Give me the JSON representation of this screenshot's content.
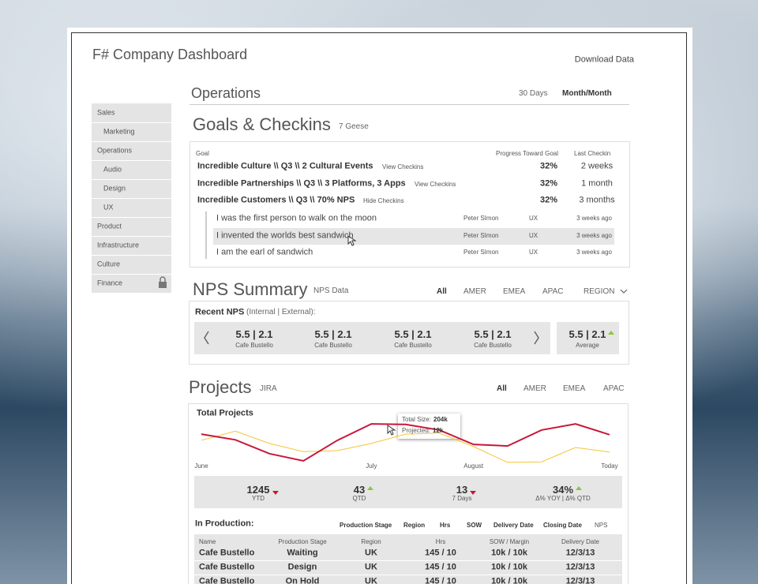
{
  "header": {
    "title": "F# Company Dashboard",
    "download": "Download Data"
  },
  "sidebar": {
    "items": [
      {
        "label": "Sales",
        "sub": false
      },
      {
        "label": "Marketing",
        "sub": true
      },
      {
        "label": "Operations",
        "sub": false
      },
      {
        "label": "Audio",
        "sub": true
      },
      {
        "label": "Design",
        "sub": true
      },
      {
        "label": "UX",
        "sub": true
      },
      {
        "label": "Product",
        "sub": false
      },
      {
        "label": "Infrastructure",
        "sub": false
      },
      {
        "label": "Culture",
        "sub": false
      },
      {
        "label": "Finance",
        "sub": false,
        "locked": true
      }
    ]
  },
  "operations": {
    "title": "Operations",
    "tabs": [
      "30 Days",
      "Month/Month"
    ],
    "active": 1
  },
  "goals": {
    "title": "Goals & Checkins",
    "subtitle": "7 Geese",
    "headers": [
      "Goal",
      "Progress Toward Goal",
      "Last Checkin"
    ],
    "rows": [
      {
        "goal": "Incredible Culture \\\\ Q3 \\\\ 2 Cultural Events",
        "link": "View Checkins",
        "progress": "32%",
        "last": "2 weeks"
      },
      {
        "goal": "Incredible Partnerships \\\\ Q3 \\\\ 3 Platforms, 3 Apps",
        "link": "View Checkins",
        "progress": "32%",
        "last": "1 month"
      },
      {
        "goal": "Incredible Customers \\\\ Q3 \\\\ 70% NPS",
        "link": "Hide Checkins",
        "progress": "32%",
        "last": "3 months"
      }
    ],
    "checkins": [
      {
        "text": "I was the first person to walk on the moon",
        "person": "Peter SImon",
        "team": "UX",
        "time": "3 weeks ago"
      },
      {
        "text": "I invented the worlds best sandwich",
        "person": "Peter SImon",
        "team": "UX",
        "time": "3 weeks ago",
        "highlight": true
      },
      {
        "text": "I am the earl of sandwich",
        "person": "Peter SImon",
        "team": "UX",
        "time": "3 weeks ago"
      }
    ]
  },
  "nps": {
    "title": "NPS Summary",
    "subtitle": "NPS Data",
    "tabs": [
      "All",
      "AMER",
      "EMEA",
      "APAC",
      "REGION"
    ],
    "active": 0,
    "label": "Recent NPS",
    "label_note": "(Internal | External):",
    "cards": [
      {
        "value": "5.5 | 2.1",
        "name": "Cafe Bustello"
      },
      {
        "value": "5.5 | 2.1",
        "name": "Cafe Bustello"
      },
      {
        "value": "5.5 | 2.1",
        "name": "Cafe Bustello"
      },
      {
        "value": "5.5 | 2.1",
        "name": "Cafe Bustello"
      }
    ],
    "average": {
      "value": "5.5 | 2.1",
      "name": "Average",
      "trend": "up"
    }
  },
  "projects": {
    "title": "Projects",
    "subtitle": "JIRA",
    "tabs": [
      "All",
      "AMER",
      "EMEA",
      "APAC"
    ],
    "active": 0,
    "stats": [
      {
        "value": "1245",
        "label": "YTD",
        "trend": "down"
      },
      {
        "value": "43",
        "label": "QTD",
        "trend": "up"
      },
      {
        "value": "13",
        "label": "7 Days",
        "trend": "down"
      },
      {
        "value": "34%",
        "label": "Δ% YOY | Δ% QTD",
        "trend": "up"
      }
    ]
  },
  "chart_data": {
    "type": "line",
    "title": "Total Projects",
    "categories": [
      "June",
      null,
      null,
      null,
      null,
      "July",
      null,
      null,
      "August",
      null,
      null,
      null,
      "Today"
    ],
    "ylim": [
      0,
      100
    ],
    "series": [
      {
        "color": "#c8173a",
        "values": [
          69,
          58,
          31,
          17,
          57,
          89,
          88,
          77,
          49,
          46,
          77,
          89,
          68
        ]
      },
      {
        "color": "#f5c531",
        "values": [
          57,
          75,
          51,
          35,
          37,
          51,
          69,
          71,
          45,
          14,
          15,
          43,
          34
        ]
      }
    ],
    "tooltip": [
      {
        "label": "Total Size:",
        "value": "204k"
      },
      {
        "label": "Projected:",
        "value": "12k"
      }
    ]
  },
  "production": {
    "title": "In Production:",
    "filters": [
      "Production Stage",
      "Region",
      "Hrs",
      "SOW",
      "Delivery Date",
      "Closing Date",
      "NPS"
    ],
    "columns": [
      "Name",
      "Production Stage",
      "Region",
      "Hrs",
      "SOW / Margin",
      "Delivery Date"
    ],
    "rows": [
      [
        "Cafe Bustello",
        "Waiting",
        "UK",
        "145 / 10",
        "10k / 10k",
        "12/3/13"
      ],
      [
        "Cafe Bustello",
        "Design",
        "UK",
        "145 / 10",
        "10k / 10k",
        "12/3/13"
      ],
      [
        "Cafe Bustello",
        "On Hold",
        "UK",
        "145 / 10",
        "10k / 10k",
        "12/3/13"
      ]
    ]
  }
}
